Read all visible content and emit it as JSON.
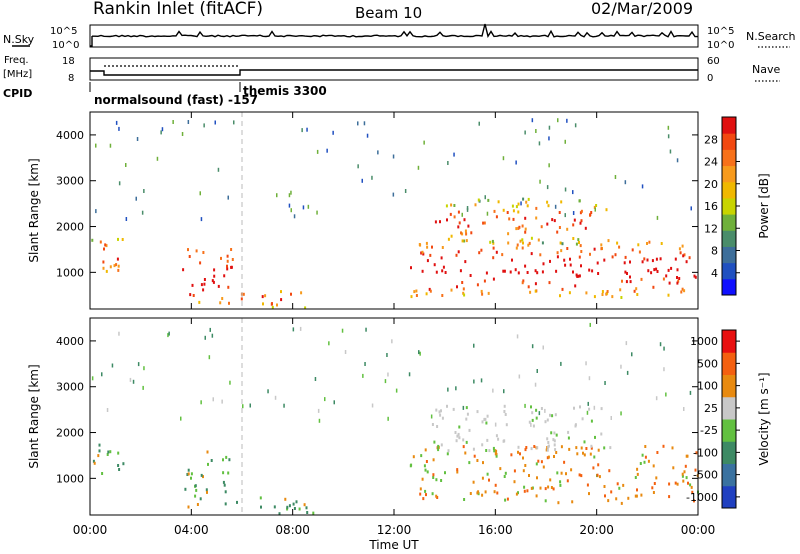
{
  "header": {
    "title": "Rankin Inlet (fitACF)",
    "beam": "Beam 10",
    "date": "02/Mar/2009"
  },
  "strip_labels": {
    "nsky": "N.Sky",
    "nsearch": "N.Search",
    "freq_top": "Freq.",
    "freq_unit": "[MHz]",
    "nave": "Nave",
    "cpid": "CPID",
    "cpid_name1": "normalsound (fast) -157",
    "cpid_name2": "themis 3300",
    "noise_ticks_left": [
      "10^5",
      "10^0"
    ],
    "noise_ticks_right": [
      "10^5",
      "10^0"
    ],
    "freq_ticks": [
      "18",
      "8"
    ],
    "nave_ticks": [
      "60",
      "0"
    ]
  },
  "chart_data": [
    {
      "type": "heatmap",
      "panel": "power",
      "ylabel": "Slant Range [km]",
      "ylim": [
        200,
        4500
      ],
      "yticks": [
        "1000",
        "2000",
        "3000",
        "4000"
      ],
      "xticks": [
        "00:00",
        "04:00",
        "08:00",
        "12:00",
        "16:00",
        "20:00",
        "00:00"
      ],
      "xlim_hours": [
        0,
        24
      ],
      "colorbar": {
        "label": "Power [dB]",
        "ticks": [
          "4",
          "8",
          "12",
          "16",
          "20",
          "24",
          "28"
        ],
        "colors": [
          "#1010ff",
          "#2050c0",
          "#3d6e9a",
          "#4a8d6a",
          "#6fb03a",
          "#c8d400",
          "#f0b800",
          "#f79a1c",
          "#f7711a",
          "#f24810",
          "#e01010"
        ]
      },
      "regions": [
        {
          "name": "early-range-band",
          "t": [
            0.0,
            1.3
          ],
          "r": [
            900,
            1750
          ],
          "level": 0.65
        },
        {
          "name": "mid-night-echoes",
          "t": [
            3.6,
            5.6
          ],
          "r": [
            250,
            1600
          ],
          "level": 0.75
        },
        {
          "name": "near-range-post-06",
          "t": [
            5.6,
            8.8
          ],
          "r": [
            220,
            600
          ],
          "level": 0.6
        },
        {
          "name": "evening-main-band",
          "t": [
            12.6,
            24.0
          ],
          "r": [
            450,
            1700
          ],
          "level": 0.8
        },
        {
          "name": "upper-band",
          "t": [
            13.4,
            20.5
          ],
          "r": [
            1600,
            2600
          ],
          "level": 0.5
        }
      ]
    },
    {
      "type": "heatmap",
      "panel": "velocity",
      "ylabel": "Slant Range [km]",
      "ylim": [
        200,
        4500
      ],
      "yticks": [
        "1000",
        "2000",
        "3000",
        "4000"
      ],
      "xticks": [
        "00:00",
        "04:00",
        "08:00",
        "12:00",
        "16:00",
        "20:00",
        "00:00"
      ],
      "xlabel": "Time UT",
      "xlim_hours": [
        0,
        24
      ],
      "colorbar": {
        "label": "Velocity [m s⁻¹]",
        "ticks": [
          "1000",
          "500",
          "100",
          "25",
          "-25",
          "-100",
          "-500",
          "-1000"
        ],
        "colors": [
          "#2040c0",
          "#3a72a0",
          "#3d8a64",
          "#62c040",
          "#c8c8c8",
          "#e88a10",
          "#f46010",
          "#e81010"
        ]
      },
      "regions": [
        {
          "name": "early-range-band",
          "t": [
            0.0,
            1.3
          ],
          "r": [
            900,
            1750
          ],
          "level": 0.4
        },
        {
          "name": "mid-night-echoes",
          "t": [
            3.6,
            5.6
          ],
          "r": [
            250,
            1600
          ],
          "level": 0.35
        },
        {
          "name": "near-range-post-06",
          "t": [
            5.6,
            8.8
          ],
          "r": [
            220,
            600
          ],
          "level": 0.3
        },
        {
          "name": "evening-main-band",
          "t": [
            12.6,
            24.0
          ],
          "r": [
            450,
            1700
          ],
          "level": 0.7
        },
        {
          "name": "upper-band",
          "t": [
            13.4,
            20.5
          ],
          "r": [
            1600,
            2600
          ],
          "level": 0.5
        }
      ]
    }
  ]
}
